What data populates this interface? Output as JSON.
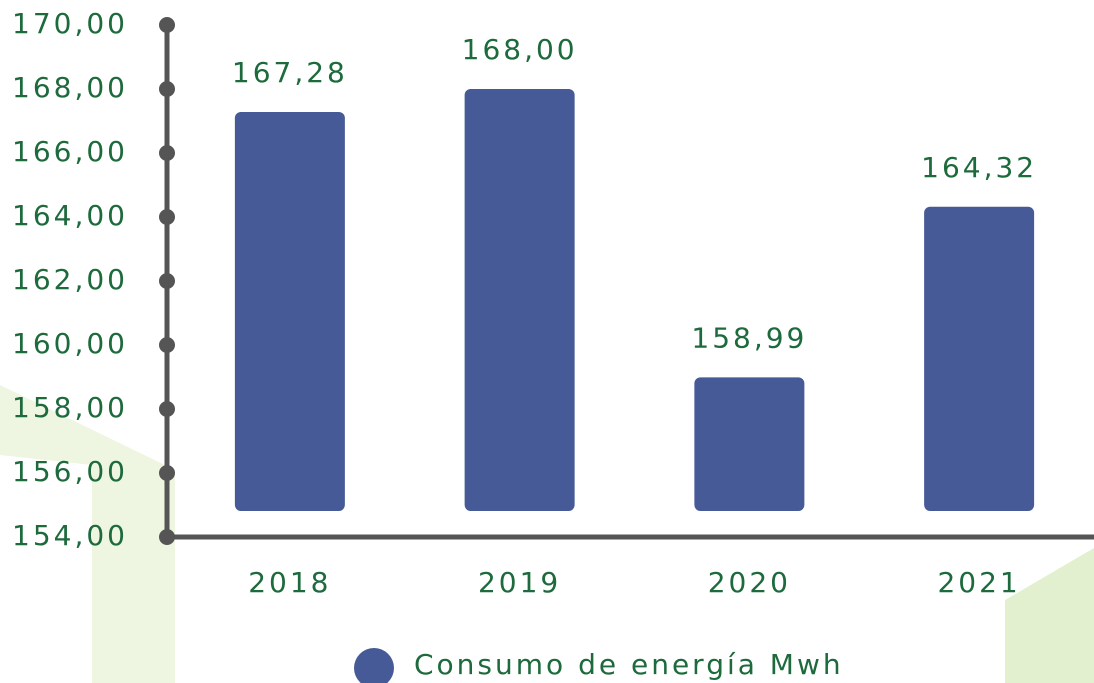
{
  "chart_data": {
    "type": "bar",
    "categories": [
      "2018",
      "2019",
      "2020",
      "2021"
    ],
    "series": [
      {
        "name": "Consumo de energía Mwh",
        "color": "#455a96",
        "values": [
          167.28,
          168.0,
          158.99,
          164.32
        ],
        "value_labels": [
          "167,28",
          "168,00",
          "158,99",
          "164,32"
        ]
      }
    ],
    "ylim": [
      154,
      170
    ],
    "yticks": [
      {
        "value": 154,
        "label": "154,00"
      },
      {
        "value": 156,
        "label": "156,00"
      },
      {
        "value": 158,
        "label": "158,00"
      },
      {
        "value": 160,
        "label": "160,00"
      },
      {
        "value": 162,
        "label": "162,00"
      },
      {
        "value": 164,
        "label": "164,00"
      },
      {
        "value": 166,
        "label": "166,00"
      },
      {
        "value": 168,
        "label": "168,00"
      },
      {
        "value": 170,
        "label": "170,00"
      }
    ],
    "legend": "bottom"
  }
}
